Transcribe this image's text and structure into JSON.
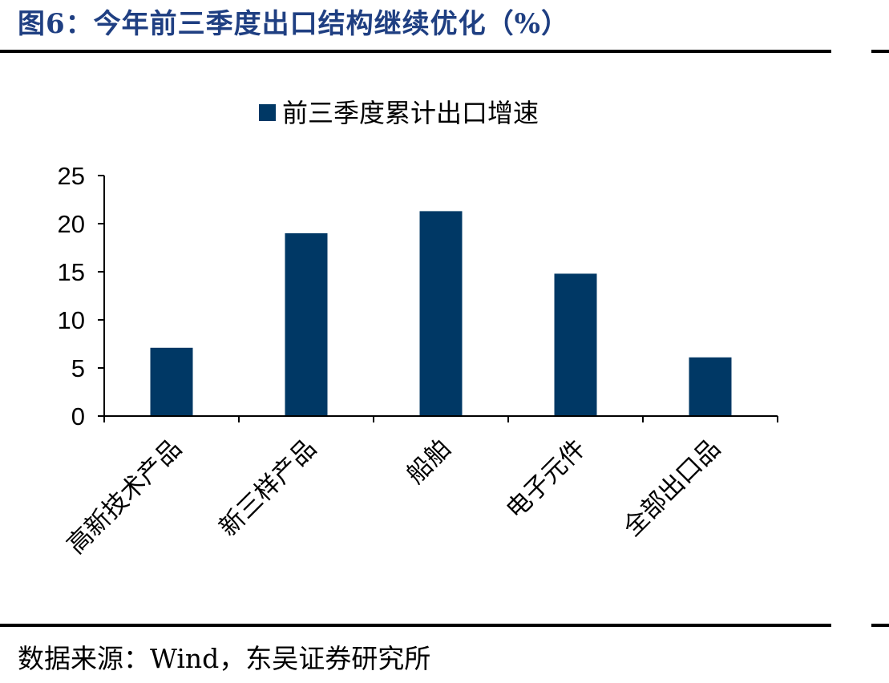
{
  "figure": {
    "title": "图6：今年前三季度出口结构继续优化（%）",
    "source": "数据来源：Wind，东吴证券研究所"
  },
  "colors": {
    "title": "#1f3f82",
    "bar": "#003865",
    "axis": "#000000"
  },
  "chart_data": {
    "type": "bar",
    "title": "",
    "xlabel": "",
    "ylabel": "",
    "categories": [
      "高新技术产品",
      "新三样产品",
      "船舶",
      "电子元件",
      "全部出口品"
    ],
    "series": [
      {
        "name": "前三季度累计出口增速",
        "values": [
          7.1,
          19.0,
          21.3,
          14.8,
          6.1
        ]
      }
    ],
    "ylim": [
      0,
      25
    ],
    "yticks": [
      0,
      5,
      10,
      15,
      20,
      25
    ],
    "legend": "top-center",
    "grid": false
  }
}
